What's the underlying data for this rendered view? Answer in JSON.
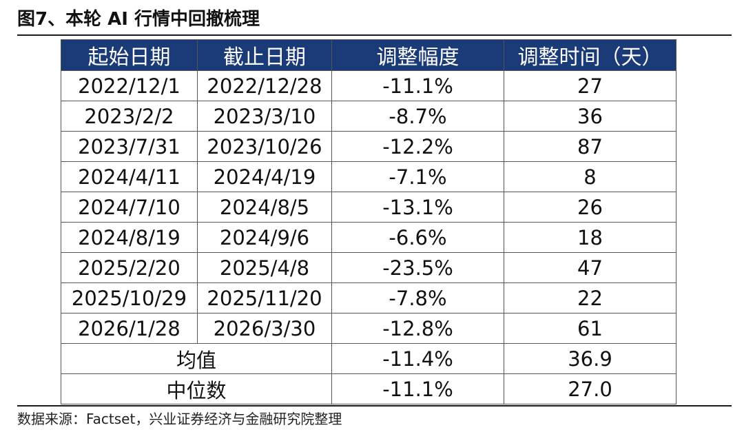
{
  "figure": {
    "title": "图7、本轮 AI 行情中回撤梳理",
    "source": "数据来源：Factset，兴业证券经济与金融研究院整理"
  },
  "table": {
    "headers": [
      "起始日期",
      "截止日期",
      "调整幅度",
      "调整时间（天）"
    ],
    "rows": [
      [
        "2022/12/1",
        "2022/12/28",
        "-11.1%",
        "27"
      ],
      [
        "2023/2/2",
        "2023/3/10",
        "-8.7%",
        "36"
      ],
      [
        "2023/7/31",
        "2023/10/26",
        "-12.2%",
        "87"
      ],
      [
        "2024/4/11",
        "2024/4/19",
        "-7.1%",
        "8"
      ],
      [
        "2024/7/10",
        "2024/8/5",
        "-13.1%",
        "26"
      ],
      [
        "2024/8/19",
        "2024/9/6",
        "-6.6%",
        "18"
      ],
      [
        "2025/2/20",
        "2025/4/8",
        "-23.5%",
        "47"
      ],
      [
        "2025/10/29",
        "2025/11/20",
        "-7.8%",
        "22"
      ],
      [
        "2026/1/28",
        "2026/3/30",
        "-12.8%",
        "61"
      ]
    ],
    "summary": [
      {
        "label": "均值",
        "drawdown": "-11.4%",
        "days": "36.9"
      },
      {
        "label": "中位数",
        "drawdown": "-11.1%",
        "days": "27.0"
      }
    ]
  },
  "colors": {
    "header_bg": "#1b3a78",
    "header_text": "#ffffff",
    "border": "#555555"
  }
}
